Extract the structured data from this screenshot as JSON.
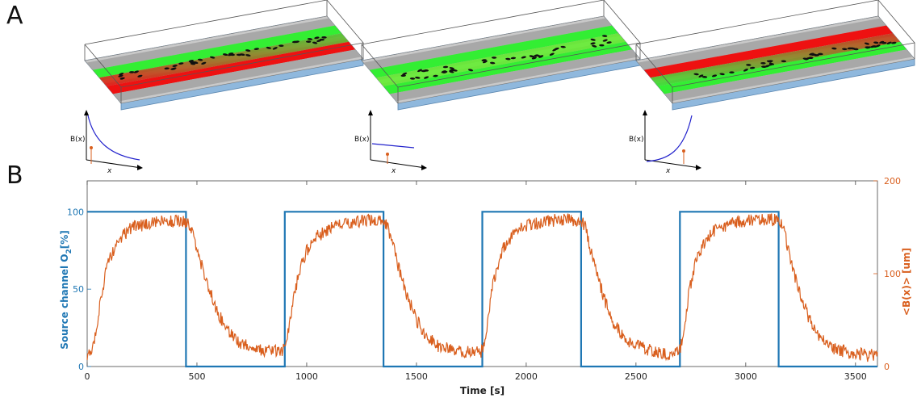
{
  "panels": {
    "a": "A",
    "b": "B"
  },
  "insets": [
    {
      "ylabel": "B(x)",
      "xlabel": "x",
      "profile": "decreasing"
    },
    {
      "ylabel": "B(x)",
      "xlabel": "x",
      "profile": "flat"
    },
    {
      "ylabel": "B(x)",
      "xlabel": "x",
      "profile": "increasing"
    }
  ],
  "devices": [
    {
      "left_channel": "green",
      "right_channel": "red",
      "cell_distribution": "left-biased"
    },
    {
      "left_channel": "green",
      "right_channel": "green",
      "cell_distribution": "uniform"
    },
    {
      "left_channel": "red",
      "right_channel": "green",
      "cell_distribution": "right-biased"
    }
  ],
  "colors": {
    "left_axis": "#1f77b4",
    "right_axis": "#d95f1e",
    "channel_green": "#33ee33",
    "channel_red": "#ee1111",
    "device_base": "#8fb8dd"
  },
  "chart_data": {
    "type": "line",
    "xlabel": "Time [s]",
    "ylabel_left_prefix": "Source channel O",
    "ylabel_left_sub": "2",
    "ylabel_left_suffix": "[%]",
    "ylabel_right": "<B(x)> [um]",
    "xlim": [
      0,
      3600
    ],
    "ylim_left": [
      0,
      120
    ],
    "ylim_right": [
      0,
      200
    ],
    "xticks": [
      "0",
      "500",
      "1000",
      "1500",
      "2000",
      "2500",
      "3000",
      "3500"
    ],
    "yticks_left": [
      "0",
      "50",
      "100"
    ],
    "yticks_right": [
      "0",
      "100",
      "200"
    ],
    "series": [
      {
        "axis": "left",
        "x": [
          0,
          450,
          450,
          900,
          900,
          1350,
          1350,
          1800,
          1800,
          2250,
          2250,
          2700,
          2700,
          3150,
          3150,
          3600
        ],
        "y": [
          100,
          100,
          0,
          0,
          100,
          100,
          0,
          0,
          100,
          100,
          0,
          0,
          100,
          100,
          0,
          0
        ]
      },
      {
        "axis": "right",
        "x": [
          0,
          20,
          40,
          60,
          80,
          100,
          130,
          160,
          200,
          250,
          300,
          350,
          400,
          430,
          450,
          470,
          490,
          520,
          560,
          600,
          650,
          700,
          750,
          800,
          850,
          880,
          900,
          920,
          940,
          970,
          1000,
          1050,
          1100,
          1150,
          1200,
          1250,
          1300,
          1330,
          1350,
          1370,
          1390,
          1420,
          1460,
          1500,
          1550,
          1600,
          1650,
          1700,
          1750,
          1780,
          1800,
          1820,
          1840,
          1870,
          1900,
          1950,
          2000,
          2050,
          2100,
          2150,
          2200,
          2230,
          2250,
          2270,
          2290,
          2320,
          2360,
          2400,
          2450,
          2500,
          2550,
          2600,
          2650,
          2680,
          2700,
          2720,
          2740,
          2770,
          2800,
          2850,
          2900,
          2950,
          3000,
          3050,
          3100,
          3130,
          3150,
          3170,
          3190,
          3220,
          3260,
          3300,
          3350,
          3400,
          3450,
          3500,
          3550,
          3600
        ],
        "y": [
          10,
          15,
          40,
          70,
          95,
          115,
          130,
          140,
          150,
          152,
          155,
          156,
          156,
          157,
          156,
          150,
          135,
          110,
          80,
          55,
          35,
          25,
          20,
          18,
          17,
          17,
          18,
          40,
          75,
          105,
          125,
          140,
          148,
          152,
          155,
          157,
          157,
          158,
          157,
          150,
          135,
          105,
          75,
          50,
          32,
          22,
          18,
          16,
          15,
          15,
          17,
          40,
          80,
          110,
          130,
          145,
          152,
          155,
          157,
          158,
          158,
          157,
          157,
          150,
          130,
          100,
          70,
          45,
          30,
          22,
          18,
          16,
          14,
          14,
          18,
          40,
          80,
          110,
          130,
          145,
          150,
          155,
          157,
          158,
          158,
          158,
          157,
          150,
          130,
          100,
          70,
          45,
          28,
          20,
          16,
          14,
          12,
          12
        ]
      }
    ]
  }
}
